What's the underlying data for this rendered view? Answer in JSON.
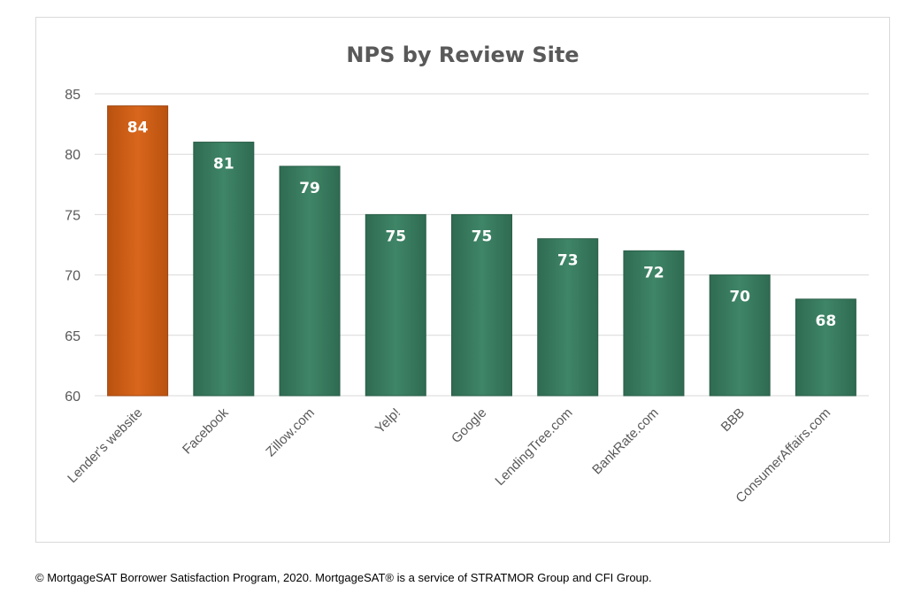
{
  "chart_data": {
    "type": "bar",
    "title": "NPS by Review Site",
    "xlabel": "",
    "ylabel": "",
    "categories": [
      "Lender's website",
      "Facebook",
      "Zillow.com",
      "Yelp!",
      "Google",
      "LendingTree.com",
      "BankRate.com",
      "BBB",
      "ConsumerAffairs.com"
    ],
    "values": [
      84,
      81,
      79,
      75,
      75,
      73,
      72,
      70,
      68
    ],
    "ylim": [
      60,
      85
    ],
    "yticks": [
      60,
      65,
      70,
      75,
      80,
      85
    ],
    "grid": true,
    "legend": "none",
    "data_labels": true,
    "colors": {
      "highlight": "#d4621a",
      "default": "#3a7f62",
      "grid": "#d9d9d9"
    },
    "highlight_index": 0
  },
  "footer": {
    "text": "© MortgageSAT Borrower Satisfaction Program, 2020. MortgageSAT® is a service of STRATMOR Group and CFI Group."
  }
}
